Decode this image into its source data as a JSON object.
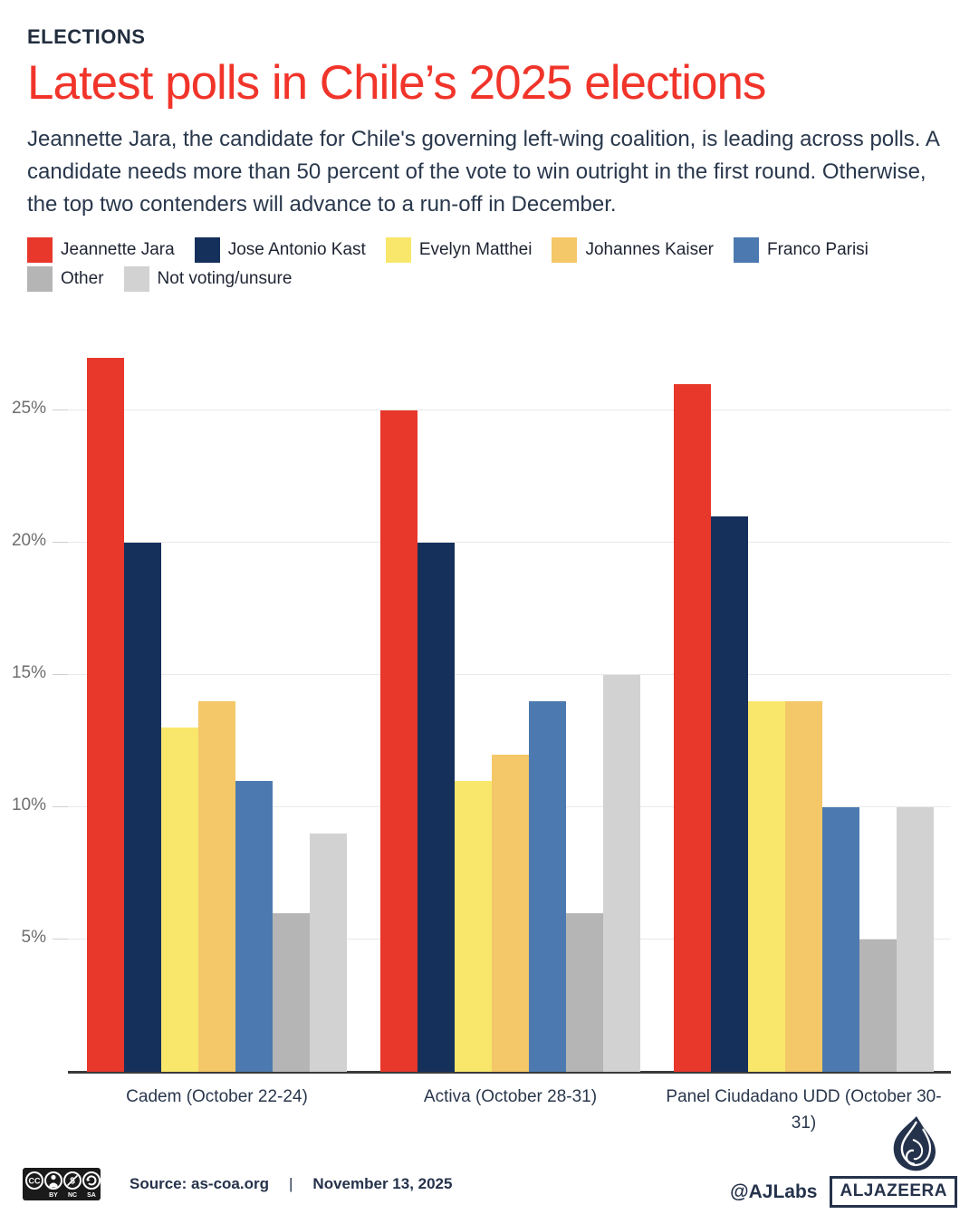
{
  "header": {
    "kicker": "ELECTIONS",
    "title": "Latest polls in Chile’s 2025 elections",
    "description": "Jeannette Jara, the candidate for Chile's governing left-wing coalition, is leading across polls. A candidate needs more than 50 percent of the vote to win outright in the first round. Otherwise, the top two contenders will advance to a run-off in December."
  },
  "colors": {
    "title_red": "#f1342a",
    "text_dark": "#29374c",
    "gridline": "#e9e9e9",
    "axis_line": "#3a3a3a",
    "tick_label": "#6e6e6e",
    "brand_navy": "#25324b"
  },
  "chart_data": {
    "type": "bar",
    "title": "Latest polls in Chile’s 2025 elections",
    "categories": [
      "Cadem (October 22-24)",
      "Activa (October 28-31)",
      "Panel Ciudadano UDD (October 30-31)"
    ],
    "series": [
      {
        "name": "Jeannette Jara",
        "color": "#e8372b",
        "values": [
          27,
          25,
          26
        ]
      },
      {
        "name": "Jose Antonio Kast",
        "color": "#16305c",
        "values": [
          20,
          20,
          21
        ]
      },
      {
        "name": "Evelyn Matthei",
        "color": "#f9e76c",
        "values": [
          13,
          11,
          14
        ]
      },
      {
        "name": "Johannes Kaiser",
        "color": "#f4c768",
        "values": [
          14,
          12,
          14
        ]
      },
      {
        "name": "Franco Parisi",
        "color": "#4c7ab0",
        "values": [
          11,
          14,
          10
        ]
      },
      {
        "name": "Other",
        "color": "#b5b5b5",
        "values": [
          6,
          6,
          5
        ]
      },
      {
        "name": "Not voting/unsure",
        "color": "#d2d2d2",
        "values": [
          9,
          15,
          10
        ]
      }
    ],
    "xlabel": "",
    "ylabel": "",
    "y_ticks": [
      5,
      10,
      15,
      20,
      25
    ],
    "y_tick_suffix": "%",
    "ylim": [
      0,
      27.8
    ],
    "grid": true,
    "legend_position": "top"
  },
  "footer": {
    "license_name": "cc-by-nc-sa-badge",
    "license_labels": [
      "BY",
      "NC",
      "SA"
    ],
    "source_label": "Source: as-coa.org",
    "separator": "|",
    "date": "November 13, 2025",
    "credit": "@AJLabs",
    "brand": "ALJAZEERA"
  }
}
